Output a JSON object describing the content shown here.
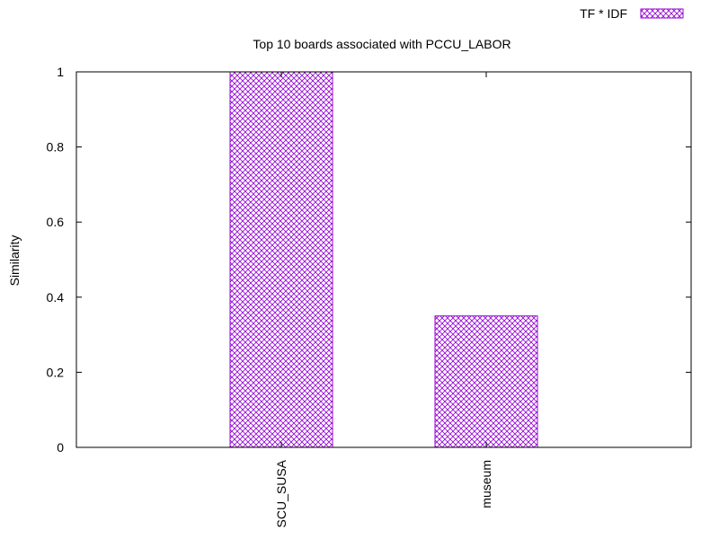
{
  "chart_data": {
    "type": "bar",
    "title": "Top 10 boards associated with PCCU_LABOR",
    "xlabel": "",
    "ylabel": "Similarity",
    "categories": [
      "SCU_SUSA",
      "museum"
    ],
    "series": [
      {
        "name": "TF * IDF",
        "values": [
          1.0,
          0.35
        ]
      }
    ],
    "ylim": [
      0,
      1
    ],
    "yticks": [
      "0",
      "0.2",
      "0.4",
      "0.6",
      "0.8",
      "1"
    ],
    "grid": false,
    "legend": "top-right",
    "colors": {
      "bar_stroke": "#9400d3",
      "axis": "#000000"
    },
    "pattern": "crosshatch"
  }
}
